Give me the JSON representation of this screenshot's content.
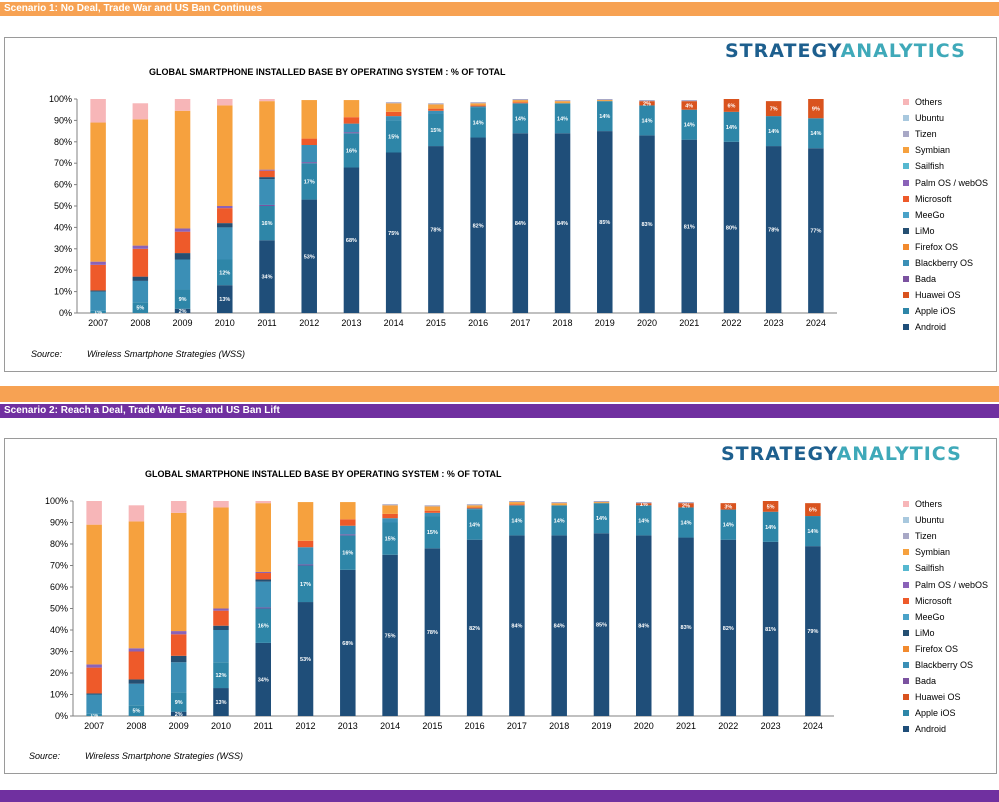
{
  "scenario1_bar": "Scenario 1: No Deal, Trade War and US Ban Continues",
  "scenario2_bar": "Scenario 2: Reach a Deal, Trade War Ease and US Ban Lift",
  "colors": {
    "orange_bar": "#f7a253",
    "purple_bar": "#7030a0"
  },
  "logo": {
    "part1": "STRATEGY",
    "part2": "ANALYTICS"
  },
  "legend": [
    "Others",
    "Ubuntu",
    "Tizen",
    "Symbian",
    "Sailfish",
    "Palm OS / webOS",
    "Microsoft",
    "MeeGo",
    "LiMo",
    "Firefox OS",
    "Blackberry OS",
    "Bada",
    "Huawei OS",
    "Apple iOS",
    "Android"
  ],
  "series_colors": {
    "Android": "#1f4e79",
    "Apple iOS": "#2e86a8",
    "Huawei OS": "#d9531e",
    "Bada": "#7b52a0",
    "Blackberry OS": "#3b8fb6",
    "Firefox OS": "#f28a2e",
    "LiMo": "#254f72",
    "MeeGo": "#4aa2c8",
    "Microsoft": "#ee5a2a",
    "Palm OS / webOS": "#8a62b8",
    "Sailfish": "#56b8d0",
    "Symbian": "#f6a13e",
    "Tizen": "#a8a8c6",
    "Ubuntu": "#a8c8de",
    "Others": "#f7b6b8"
  },
  "source": {
    "label": "Source:",
    "text": "Wireless Smartphone Strategies (WSS)"
  },
  "chart_data": [
    {
      "type": "bar",
      "stacked": true,
      "title": "GLOBAL SMARTPHONE INSTALLED BASE BY OPERATING SYSTEM : % OF TOTAL",
      "categories": [
        "2007",
        "2008",
        "2009",
        "2010",
        "2011",
        "2012",
        "2013",
        "2014",
        "2015",
        "2016",
        "2017",
        "2018",
        "2019",
        "2020",
        "2021",
        "2022",
        "2023",
        "2024"
      ],
      "ylim": [
        0,
        100
      ],
      "yticks": [
        "0%",
        "10%",
        "20%",
        "30%",
        "40%",
        "50%",
        "60%",
        "70%",
        "80%",
        "90%",
        "100%"
      ],
      "series": [
        {
          "name": "Android",
          "values": [
            0,
            0,
            2,
            13,
            34,
            53,
            68,
            75,
            78,
            82,
            84,
            84,
            85,
            83,
            81,
            80,
            78,
            77
          ],
          "labels": [
            "",
            "",
            "2%",
            "13%",
            "34%",
            "53%",
            "68%",
            "75%",
            "78%",
            "82%",
            "84%",
            "84%",
            "85%",
            "83%",
            "81%",
            "80%",
            "78%",
            "77%"
          ]
        },
        {
          "name": "Apple iOS",
          "values": [
            1,
            5,
            9,
            12,
            16,
            17,
            16,
            15,
            15,
            14,
            14,
            14,
            14,
            14,
            14,
            14,
            14,
            14
          ],
          "labels": [
            "1%",
            "5%",
            "9%",
            "12%",
            "16%",
            "17%",
            "16%",
            "15%",
            "15%",
            "14%",
            "14%",
            "14%",
            "14%",
            "14%",
            "14%",
            "14%",
            "14%",
            "14%"
          ]
        },
        {
          "name": "Huawei OS",
          "values": [
            0,
            0,
            0,
            0,
            0,
            0,
            0,
            0,
            0,
            0,
            0,
            0,
            0,
            2,
            4,
            6,
            7,
            9
          ],
          "labels": [
            "",
            "",
            "",
            "",
            "",
            "",
            "",
            "",
            "",
            "",
            "",
            "",
            "",
            "2%",
            "4%",
            "6%",
            "7%",
            "9%"
          ]
        },
        {
          "name": "Bada",
          "values": [
            0,
            0,
            0,
            0,
            0.5,
            0.5,
            0.5,
            0,
            0,
            0,
            0,
            0,
            0,
            0,
            0,
            0,
            0,
            0
          ]
        },
        {
          "name": "Blackberry OS",
          "values": [
            9,
            10,
            14,
            15,
            12,
            8,
            4,
            2,
            1.5,
            0.5,
            0,
            0,
            0,
            0,
            0,
            0,
            0,
            0
          ]
        },
        {
          "name": "Firefox OS",
          "values": [
            0,
            0,
            0,
            0,
            0,
            0,
            0,
            0,
            0,
            0,
            0,
            0,
            0,
            0,
            0,
            0,
            0,
            0
          ]
        },
        {
          "name": "LiMo",
          "values": [
            0.5,
            2,
            3,
            2,
            1,
            0,
            0,
            0,
            0,
            0,
            0,
            0,
            0,
            0,
            0,
            0,
            0,
            0
          ]
        },
        {
          "name": "MeeGo",
          "values": [
            0,
            0,
            0,
            0,
            0,
            0,
            0,
            0,
            0,
            0,
            0,
            0,
            0,
            0,
            0,
            0,
            0,
            0
          ]
        },
        {
          "name": "Microsoft",
          "values": [
            12,
            13,
            10,
            7,
            3,
            3,
            3,
            2,
            1,
            0.5,
            0.5,
            0,
            0,
            0,
            0,
            0,
            0,
            0
          ]
        },
        {
          "name": "Palm OS / webOS",
          "values": [
            1.5,
            1.5,
            1.5,
            1,
            0.5,
            0,
            0,
            0,
            0,
            0,
            0,
            0,
            0,
            0,
            0,
            0,
            0,
            0
          ]
        },
        {
          "name": "Sailfish",
          "values": [
            0,
            0,
            0,
            0,
            0,
            0,
            0,
            0,
            0,
            0,
            0,
            0,
            0,
            0,
            0,
            0,
            0,
            0
          ]
        },
        {
          "name": "Symbian",
          "values": [
            65,
            59,
            55,
            47,
            32,
            18,
            8,
            4,
            2,
            1,
            1,
            1,
            0.5,
            0,
            0,
            0,
            0,
            0
          ]
        },
        {
          "name": "Tizen",
          "values": [
            0,
            0,
            0,
            0,
            0,
            0,
            0,
            0.5,
            0.5,
            0.5,
            0.5,
            0.5,
            0.5,
            0.5,
            0.5,
            0,
            0,
            0
          ]
        },
        {
          "name": "Ubuntu",
          "values": [
            0,
            0,
            0,
            0,
            0,
            0,
            0,
            0,
            0,
            0,
            0,
            0,
            0,
            0,
            0,
            0,
            0,
            0
          ]
        },
        {
          "name": "Others",
          "values": [
            11,
            7.5,
            5.5,
            3,
            1,
            0,
            0,
            0,
            0,
            0,
            0,
            0,
            0,
            0,
            0,
            0,
            0,
            0
          ]
        }
      ]
    },
    {
      "type": "bar",
      "stacked": true,
      "title": "GLOBAL SMARTPHONE INSTALLED BASE BY OPERATING SYSTEM : % OF TOTAL",
      "categories": [
        "2007",
        "2008",
        "2009",
        "2010",
        "2011",
        "2012",
        "2013",
        "2014",
        "2015",
        "2016",
        "2017",
        "2018",
        "2019",
        "2020",
        "2021",
        "2022",
        "2023",
        "2024"
      ],
      "ylim": [
        0,
        100
      ],
      "yticks": [
        "0%",
        "10%",
        "20%",
        "30%",
        "40%",
        "50%",
        "60%",
        "70%",
        "80%",
        "90%",
        "100%"
      ],
      "series": [
        {
          "name": "Android",
          "values": [
            0,
            0,
            2,
            13,
            34,
            53,
            68,
            75,
            78,
            82,
            84,
            84,
            85,
            84,
            83,
            82,
            81,
            79
          ],
          "labels": [
            "",
            "",
            "2%",
            "13%",
            "34%",
            "53%",
            "68%",
            "75%",
            "78%",
            "82%",
            "84%",
            "84%",
            "85%",
            "84%",
            "83%",
            "82%",
            "81%",
            "79%"
          ]
        },
        {
          "name": "Apple iOS",
          "values": [
            1,
            5,
            9,
            12,
            16,
            17,
            16,
            15,
            15,
            14,
            14,
            14,
            14,
            14,
            14,
            14,
            14,
            14
          ],
          "labels": [
            "1%",
            "5%",
            "9%",
            "12%",
            "16%",
            "17%",
            "16%",
            "15%",
            "15%",
            "14%",
            "14%",
            "14%",
            "14%",
            "14%",
            "14%",
            "14%",
            "14%",
            "14%"
          ]
        },
        {
          "name": "Huawei OS",
          "values": [
            0,
            0,
            0,
            0,
            0,
            0,
            0,
            0,
            0,
            0,
            0,
            0,
            0,
            1,
            2,
            3,
            5,
            6
          ],
          "labels": [
            "",
            "",
            "",
            "",
            "",
            "",
            "",
            "",
            "",
            "",
            "",
            "",
            "",
            "1%",
            "2%",
            "3%",
            "5%",
            "6%"
          ]
        },
        {
          "name": "Bada",
          "values": [
            0,
            0,
            0,
            0,
            0.5,
            0.5,
            0.5,
            0,
            0,
            0,
            0,
            0,
            0,
            0,
            0,
            0,
            0,
            0
          ]
        },
        {
          "name": "Blackberry OS",
          "values": [
            9,
            10,
            14,
            15,
            12,
            8,
            4,
            2,
            1.5,
            0.5,
            0,
            0,
            0,
            0,
            0,
            0,
            0,
            0
          ]
        },
        {
          "name": "Firefox OS",
          "values": [
            0,
            0,
            0,
            0,
            0,
            0,
            0,
            0,
            0,
            0,
            0,
            0,
            0,
            0,
            0,
            0,
            0,
            0
          ]
        },
        {
          "name": "LiMo",
          "values": [
            0.5,
            2,
            3,
            2,
            1,
            0,
            0,
            0,
            0,
            0,
            0,
            0,
            0,
            0,
            0,
            0,
            0,
            0
          ]
        },
        {
          "name": "MeeGo",
          "values": [
            0,
            0,
            0,
            0,
            0,
            0,
            0,
            0,
            0,
            0,
            0,
            0,
            0,
            0,
            0,
            0,
            0,
            0
          ]
        },
        {
          "name": "Microsoft",
          "values": [
            12,
            13,
            10,
            7,
            3,
            3,
            3,
            2,
            1,
            0.5,
            0.5,
            0,
            0,
            0,
            0,
            0,
            0,
            0
          ]
        },
        {
          "name": "Palm OS / webOS",
          "values": [
            1.5,
            1.5,
            1.5,
            1,
            0.5,
            0,
            0,
            0,
            0,
            0,
            0,
            0,
            0,
            0,
            0,
            0,
            0,
            0
          ]
        },
        {
          "name": "Sailfish",
          "values": [
            0,
            0,
            0,
            0,
            0,
            0,
            0,
            0,
            0,
            0,
            0,
            0,
            0,
            0,
            0,
            0,
            0,
            0
          ]
        },
        {
          "name": "Symbian",
          "values": [
            65,
            59,
            55,
            47,
            32,
            18,
            8,
            4,
            2,
            1,
            1,
            1,
            0.5,
            0,
            0,
            0,
            0,
            0
          ]
        },
        {
          "name": "Tizen",
          "values": [
            0,
            0,
            0,
            0,
            0,
            0,
            0,
            0.5,
            0.5,
            0.5,
            0.5,
            0.5,
            0.5,
            0.5,
            0.5,
            0,
            0,
            0
          ]
        },
        {
          "name": "Ubuntu",
          "values": [
            0,
            0,
            0,
            0,
            0,
            0,
            0,
            0,
            0,
            0,
            0,
            0,
            0,
            0,
            0,
            0,
            0,
            0
          ]
        },
        {
          "name": "Others",
          "values": [
            11,
            7.5,
            5.5,
            3,
            1,
            0,
            0,
            0,
            0,
            0,
            0,
            0,
            0,
            0,
            0,
            0,
            0,
            0
          ]
        }
      ]
    }
  ]
}
